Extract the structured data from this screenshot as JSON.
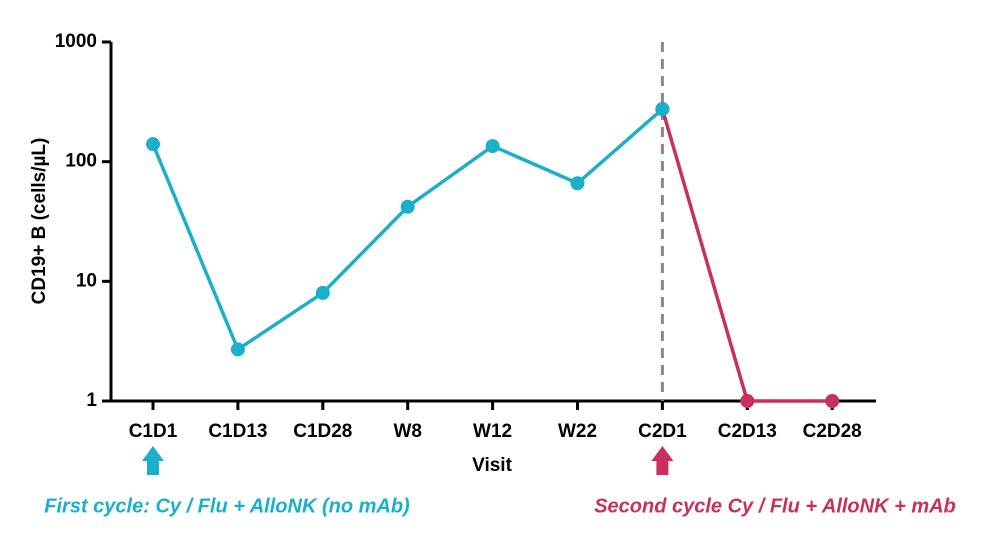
{
  "chart_data": {
    "type": "line",
    "x_label": "Visit",
    "y_label": "CD19+ B (cells/µL)",
    "categories": [
      "C1D1",
      "C1D13",
      "C1D28",
      "W8",
      "W12",
      "W22",
      "C2D1",
      "C2D13",
      "C2D28"
    ],
    "series": [
      {
        "color": "#1aafcb",
        "values": [
          140,
          2.7,
          8,
          42,
          135,
          66,
          275,
          null,
          null
        ]
      },
      {
        "color": "#c8305e",
        "values": [
          null,
          null,
          null,
          null,
          null,
          null,
          275,
          1,
          1
        ]
      }
    ],
    "ylim": [
      1,
      1000
    ],
    "yticks": [
      1,
      10,
      100,
      1000
    ],
    "log_y": true,
    "annotations": [
      {
        "text": "First cycle: Cy / Flu + AlloNK (no mAb)",
        "color": "#1aafcb"
      },
      {
        "text": "Second cycle Cy / Flu + AlloNK + mAb",
        "color": "#c8305e"
      }
    ]
  }
}
